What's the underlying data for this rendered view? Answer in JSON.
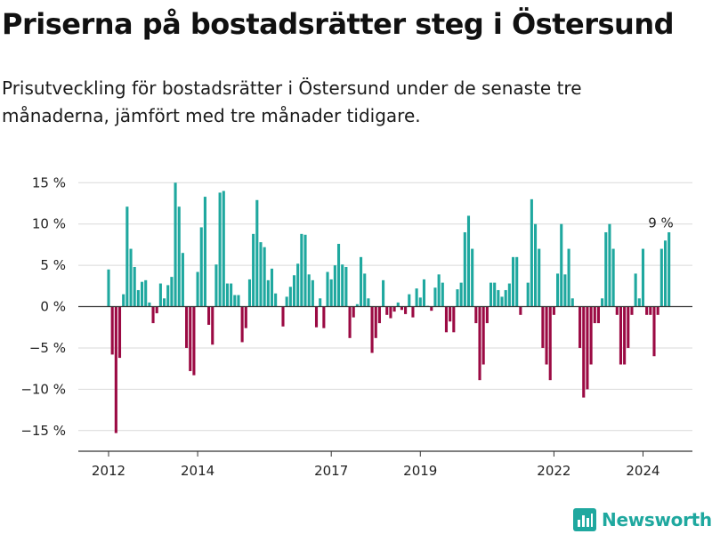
{
  "header": {
    "title": "Priserna på bostadsrätter steg i Östersund",
    "subtitle": "Prisutveckling för bostadsrätter i Östersund under de senaste tre månaderna, jämfört med tre månader tidigare."
  },
  "chart_data": {
    "type": "bar",
    "ylim": [
      -17.5,
      16
    ],
    "y_ticks": [
      15,
      10,
      5,
      0,
      -5,
      -10,
      -15
    ],
    "y_tick_labels": [
      "15 %",
      "10 %",
      "5 %",
      "0 %",
      "−5 %",
      "−10 %",
      "−15 %"
    ],
    "x_ticks": [
      {
        "label": "2012",
        "index": 0
      },
      {
        "label": "2014",
        "index": 24
      },
      {
        "label": "2017",
        "index": 60
      },
      {
        "label": "2019",
        "index": 84
      },
      {
        "label": "2022",
        "index": 120
      },
      {
        "label": "2024",
        "index": 144
      }
    ],
    "grid": true,
    "positive_color": "#1fa89f",
    "negative_color": "#9b0a43",
    "annotation": {
      "text": "9 %",
      "index": 150
    },
    "values": [
      4.5,
      -5.8,
      -15.3,
      -6.2,
      1.5,
      12.1,
      7.0,
      4.8,
      2.0,
      3.0,
      3.2,
      0.5,
      -2.0,
      -0.8,
      2.8,
      1.0,
      2.6,
      3.6,
      15.0,
      12.1,
      6.5,
      -5.0,
      -7.8,
      -8.3,
      4.2,
      9.6,
      13.3,
      -2.2,
      -4.6,
      5.1,
      13.8,
      14.0,
      2.8,
      2.8,
      1.4,
      1.4,
      -4.3,
      -2.6,
      3.3,
      8.8,
      12.9,
      7.8,
      7.2,
      3.2,
      4.6,
      1.6,
      0.0,
      -2.4,
      1.2,
      2.4,
      3.8,
      5.2,
      8.8,
      8.7,
      3.9,
      3.2,
      -2.5,
      1.0,
      -2.6,
      4.2,
      3.3,
      5.0,
      7.6,
      5.1,
      4.8,
      -3.8,
      -1.3,
      0.3,
      6.0,
      4.0,
      1.0,
      -5.6,
      -3.8,
      -2.0,
      3.2,
      -1.0,
      -1.4,
      -0.6,
      0.5,
      -0.4,
      -0.9,
      1.5,
      -1.3,
      2.2,
      1.1,
      3.3,
      0.1,
      -0.5,
      2.3,
      3.9,
      2.9,
      -3.1,
      -1.8,
      -3.1,
      2.1,
      2.9,
      9.0,
      11.0,
      7.0,
      -2.0,
      -8.9,
      -7.0,
      -2.0,
      2.9,
      2.9,
      2.0,
      1.2,
      2.0,
      2.8,
      6.0,
      6.0,
      -1.0,
      0.0,
      2.9,
      13.0,
      10.0,
      7.0,
      -5.0,
      -7.0,
      -8.9,
      -1.0,
      4.0,
      10.0,
      3.9,
      7.0,
      1.0,
      0.0,
      -5.0,
      -11.0,
      -10.0,
      -7.0,
      -2.0,
      -2.0,
      1.0,
      9.0,
      10.0,
      7.0,
      -1.0,
      -7.0,
      -7.0,
      -5.0,
      -1.0,
      4.0,
      1.0,
      7.0,
      -1.0,
      -1.0,
      -6.0,
      -1.0,
      7.0,
      8.0,
      9.0
    ]
  },
  "brand": {
    "name": "Newsworthy",
    "icon": "bar-chart-logo-icon"
  }
}
